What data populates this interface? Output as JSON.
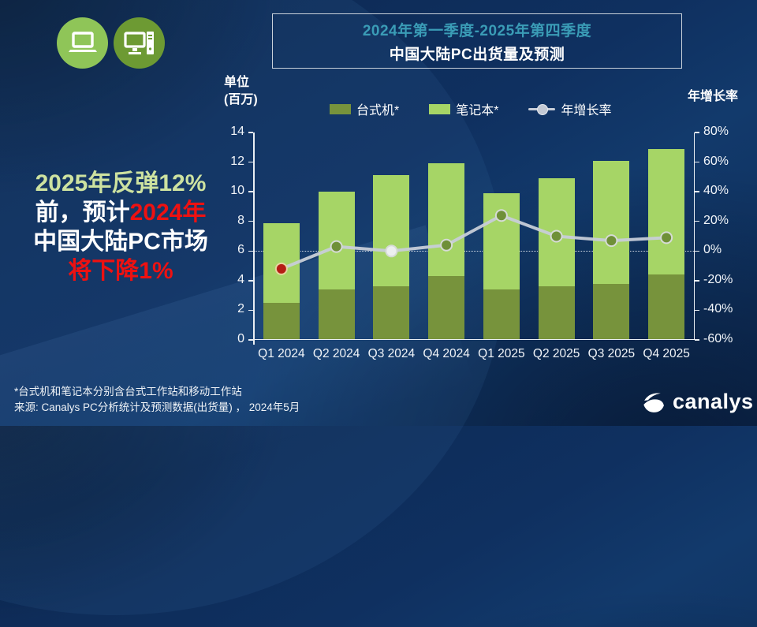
{
  "title_box": {
    "line1": "2024年第一季度-2025年第四季度",
    "line2": "中国大陆PC出货量及预测"
  },
  "headline": {
    "line1": "2025年反弹12%",
    "line2_white": "前，预计",
    "line2_red": "2024年",
    "line3": "中国大陆PC市场",
    "line4": "将下降1%"
  },
  "unit_label": {
    "line1": "单位",
    "line2": "(百万)"
  },
  "right_axis_title": "年增长率",
  "legend": {
    "desktop_label": "台式机*",
    "notebook_label": "笔记本*",
    "growth_label": "年增长率"
  },
  "footnotes": [
    "*台式机和笔记本分别含台式工作站和移动工作站",
    "来源: Canalys PC分析统计及预测数据(出货量) ， 2024年5月"
  ],
  "logo_text": "canalys",
  "colors": {
    "desktop_bar": "#77933c",
    "notebook_bar": "#a6d566",
    "growth_line": "#c7cdd8",
    "title_accent": "#3a9cb6",
    "headline_green": "#cde2a0",
    "headline_red": "#ee1111",
    "icon_circle_light": "#8fc558",
    "icon_circle_dark": "#6d9a33"
  },
  "chart_data": {
    "type": "bar",
    "subtype": "stacked-bars-with-line",
    "title": "中国大陆PC出货量及预测 2024Q1-2025Q4",
    "categories": [
      "Q1 2024",
      "Q2 2024",
      "Q3 2024",
      "Q4 2024",
      "Q1 2025",
      "Q2 2025",
      "Q3 2025",
      "Q4 2025"
    ],
    "series": [
      {
        "name": "台式机*",
        "type": "bar",
        "stack": "pc",
        "color": "#77933c",
        "values": [
          2.5,
          3.4,
          3.6,
          4.3,
          3.4,
          3.6,
          3.8,
          4.4
        ]
      },
      {
        "name": "笔记本*",
        "type": "bar",
        "stack": "pc",
        "color": "#a6d566",
        "values": [
          5.4,
          6.6,
          7.5,
          7.6,
          6.5,
          7.3,
          8.3,
          8.5
        ]
      },
      {
        "name": "年增长率",
        "type": "line",
        "axis": "right",
        "color": "#c7cdd8",
        "values_pct": [
          -12,
          3,
          0,
          4,
          24,
          10,
          7,
          9
        ],
        "marker_fills": [
          "#b51d15",
          "#6f9038",
          "#eceff0",
          "#6f9038",
          "#6f9038",
          "#6f9038",
          "#6f9038",
          "#6f9038"
        ],
        "marker_strokes": [
          "#e7d49f",
          "#d6dbd6",
          "#d6dbd6",
          "#d6dbd6",
          "#d6dbd6",
          "#d6dbd6",
          "#d6dbd6",
          "#d6dbd6"
        ]
      }
    ],
    "left_axis": {
      "title": "单位(百万)",
      "min": 0,
      "max": 14,
      "step": 2
    },
    "right_axis": {
      "title": "年增长率",
      "min": -60,
      "max": 80,
      "step": 20,
      "unit": "%"
    },
    "gridline_at_right_pct": 0,
    "legend_position": "top",
    "grid": "zero-line-only"
  }
}
